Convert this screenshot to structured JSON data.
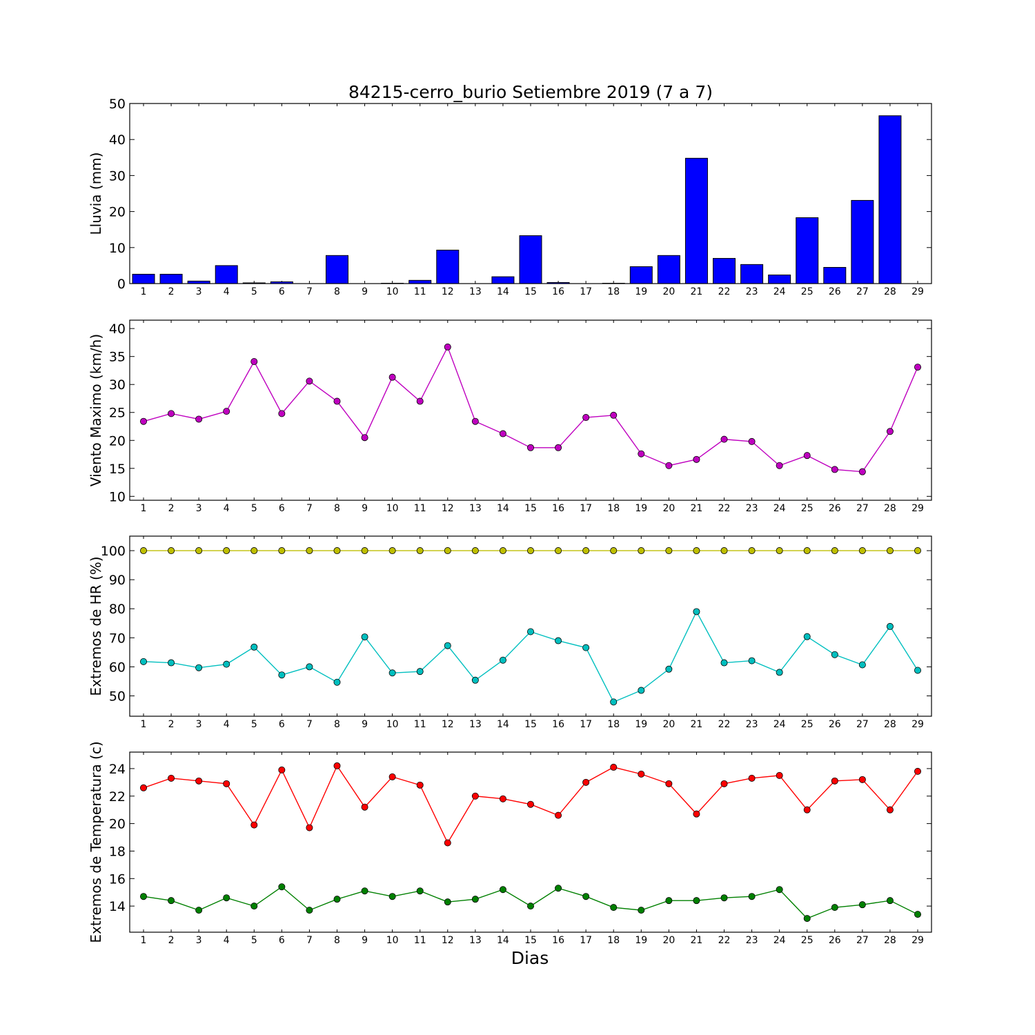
{
  "chart_data": [
    {
      "type": "bar",
      "title": "84215-cerro_burio Setiembre 2019  (7 a 7)",
      "xlabel": "",
      "ylabel": "Lluvia (mm)",
      "ylim": [
        0,
        50
      ],
      "yticks": [
        0,
        10,
        20,
        30,
        40,
        50
      ],
      "categories": [
        "1",
        "2",
        "3",
        "4",
        "5",
        "6",
        "7",
        "8",
        "9",
        "10",
        "11",
        "12",
        "13",
        "14",
        "15",
        "16",
        "17",
        "18",
        "19",
        "20",
        "21",
        "22",
        "23",
        "24",
        "25",
        "26",
        "27",
        "28",
        "29"
      ],
      "grid": false,
      "series": [
        {
          "color": "#0000ff",
          "values": [
            2.6,
            2.6,
            0.7,
            5.0,
            0.2,
            0.5,
            0.0,
            7.8,
            0.0,
            0.1,
            0.9,
            9.3,
            0.0,
            1.9,
            13.3,
            0.3,
            0.0,
            0.1,
            4.7,
            7.8,
            34.8,
            7.0,
            5.3,
            2.4,
            18.3,
            4.5,
            23.1,
            46.6,
            0.0
          ]
        }
      ]
    },
    {
      "type": "line",
      "xlabel": "",
      "ylabel": "Viento Maximo (km/h)",
      "ylim": [
        9.3,
        41.5
      ],
      "yticks": [
        10,
        15,
        20,
        25,
        30,
        35,
        40
      ],
      "x": [
        1,
        2,
        3,
        4,
        5,
        6,
        7,
        8,
        9,
        10,
        11,
        12,
        13,
        14,
        15,
        16,
        17,
        18,
        19,
        20,
        21,
        22,
        23,
        24,
        25,
        26,
        27,
        28,
        29
      ],
      "grid": false,
      "series": [
        {
          "color": "#bf00bf",
          "values": [
            23.4,
            24.8,
            23.8,
            25.2,
            34.1,
            24.8,
            30.6,
            27.0,
            20.5,
            31.3,
            27.0,
            36.7,
            23.4,
            21.2,
            18.7,
            18.7,
            24.1,
            24.5,
            17.6,
            15.5,
            16.6,
            20.2,
            19.8,
            15.5,
            17.3,
            14.8,
            14.4,
            21.6,
            33.1
          ]
        }
      ]
    },
    {
      "type": "line",
      "xlabel": "",
      "ylabel": "Extremos de HR (%)",
      "ylim": [
        43,
        105
      ],
      "yticks": [
        50,
        60,
        70,
        80,
        90,
        100
      ],
      "x": [
        1,
        2,
        3,
        4,
        5,
        6,
        7,
        8,
        9,
        10,
        11,
        12,
        13,
        14,
        15,
        16,
        17,
        18,
        19,
        20,
        21,
        22,
        23,
        24,
        25,
        26,
        27,
        28,
        29
      ],
      "grid": false,
      "series": [
        {
          "color": "#bfbf00",
          "values": [
            100,
            100,
            100,
            100,
            100,
            100,
            100,
            100,
            100,
            100,
            100,
            100,
            100,
            100,
            100,
            100,
            100,
            100,
            100,
            100,
            100,
            100,
            100,
            100,
            100,
            100,
            100,
            100,
            100
          ]
        },
        {
          "color": "#00bfbf",
          "values": [
            61.8,
            61.4,
            59.7,
            60.9,
            66.8,
            57.2,
            60.0,
            54.7,
            70.3,
            57.9,
            58.4,
            67.3,
            55.4,
            62.3,
            72.1,
            69.0,
            66.6,
            47.9,
            51.9,
            59.2,
            79.0,
            61.4,
            62.1,
            58.1,
            70.4,
            64.2,
            60.7,
            73.9,
            58.8
          ]
        }
      ]
    },
    {
      "type": "line",
      "xlabel": "Dias",
      "ylabel": "Extremos de Temperatura (c)",
      "ylim": [
        12.1,
        25.2
      ],
      "yticks": [
        14,
        16,
        18,
        20,
        22,
        24
      ],
      "x": [
        1,
        2,
        3,
        4,
        5,
        6,
        7,
        8,
        9,
        10,
        11,
        12,
        13,
        14,
        15,
        16,
        17,
        18,
        19,
        20,
        21,
        22,
        23,
        24,
        25,
        26,
        27,
        28,
        29
      ],
      "grid": false,
      "series": [
        {
          "color": "#ff0000",
          "values": [
            22.6,
            23.3,
            23.1,
            22.9,
            19.9,
            23.9,
            19.7,
            24.2,
            21.2,
            23.4,
            22.8,
            18.6,
            22.0,
            21.8,
            21.4,
            20.6,
            23.0,
            24.1,
            23.6,
            22.9,
            20.7,
            22.9,
            23.3,
            23.5,
            21.0,
            23.1,
            23.2,
            21.0,
            23.8
          ]
        },
        {
          "color": "#008000",
          "values": [
            14.7,
            14.4,
            13.7,
            14.6,
            14.0,
            15.4,
            13.7,
            14.5,
            15.1,
            14.7,
            15.1,
            14.3,
            14.5,
            15.2,
            14.0,
            15.3,
            14.7,
            13.9,
            13.7,
            14.4,
            14.4,
            14.6,
            14.7,
            15.2,
            13.1,
            13.9,
            14.1,
            14.4,
            13.4
          ]
        }
      ]
    }
  ]
}
